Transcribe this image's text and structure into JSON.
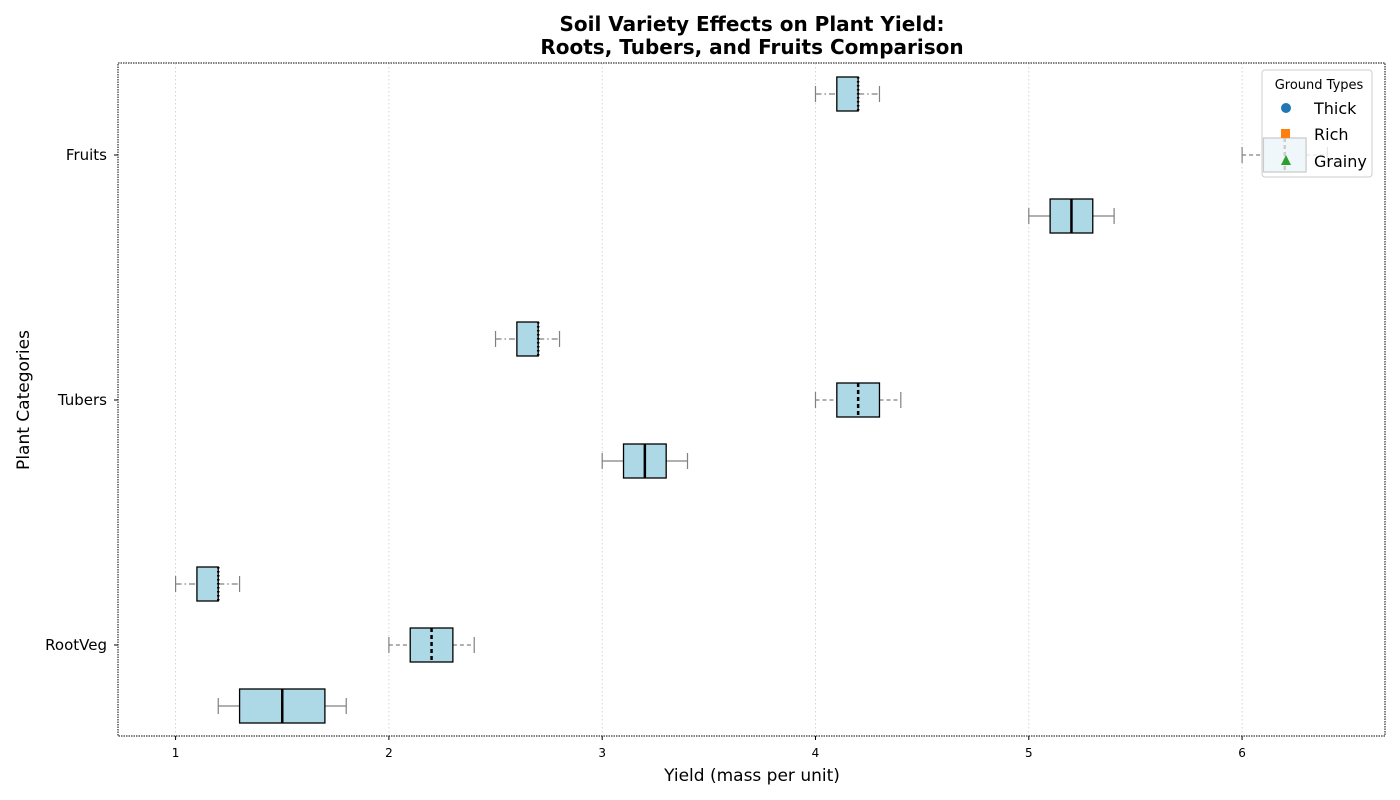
{
  "chart_data": {
    "type": "box",
    "orientation": "horizontal",
    "title_lines": [
      "Soil Variety Effects on Plant Yield:",
      "Roots, Tubers, and Fruits Comparison"
    ],
    "xlabel": "Yield (mass per unit)",
    "ylabel": "Plant Categories",
    "xlim": [
      0.73,
      6.67
    ],
    "x_ticks": [
      1,
      2,
      3,
      4,
      5,
      6
    ],
    "categories": [
      "RootVeg",
      "Tubers",
      "Fruits"
    ],
    "grid": "vertical dotted",
    "box_fill": "#add8e6",
    "legend": {
      "title": "Ground Types",
      "placement": "top-right",
      "entries": [
        {
          "name": "Thick",
          "marker": "circle",
          "color": "#1f77b4"
        },
        {
          "name": "Rich",
          "marker": "square",
          "color": "#ff7f0e"
        },
        {
          "name": "Grainy",
          "marker": "triangle",
          "color": "#2ca02c"
        }
      ]
    },
    "series": [
      {
        "name": "Thick",
        "whisker_style": "solid",
        "median_style": "solid",
        "boxes": [
          {
            "category": "RootVeg",
            "min": 1.2,
            "q1": 1.3,
            "median": 1.5,
            "q3": 1.7,
            "max": 1.8
          },
          {
            "category": "Tubers",
            "min": 3.0,
            "q1": 3.1,
            "median": 3.2,
            "q3": 3.3,
            "max": 3.4
          },
          {
            "category": "Fruits",
            "min": 5.0,
            "q1": 5.1,
            "median": 5.2,
            "q3": 5.3,
            "max": 5.4
          }
        ]
      },
      {
        "name": "Rich",
        "whisker_style": "dashed",
        "median_style": "dashed",
        "boxes": [
          {
            "category": "RootVeg",
            "min": 2.0,
            "q1": 2.1,
            "median": 2.2,
            "q3": 2.3,
            "max": 2.4
          },
          {
            "category": "Tubers",
            "min": 4.0,
            "q1": 4.1,
            "median": 4.2,
            "q3": 4.3,
            "max": 4.4
          },
          {
            "category": "Fruits",
            "min": 6.0,
            "q1": 6.1,
            "median": 6.2,
            "q3": 6.3,
            "max": 6.4
          }
        ]
      },
      {
        "name": "Grainy",
        "whisker_style": "dashdot",
        "median_style": "dotted",
        "boxes": [
          {
            "category": "RootVeg",
            "min": 1.0,
            "q1": 1.1,
            "median": 1.2,
            "q3": 1.2,
            "max": 1.3
          },
          {
            "category": "Tubers",
            "min": 2.5,
            "q1": 2.6,
            "median": 2.7,
            "q3": 2.7,
            "max": 2.8
          },
          {
            "category": "Fruits",
            "min": 4.0,
            "q1": 4.1,
            "median": 4.2,
            "q3": 4.2,
            "max": 4.3
          }
        ]
      }
    ]
  }
}
